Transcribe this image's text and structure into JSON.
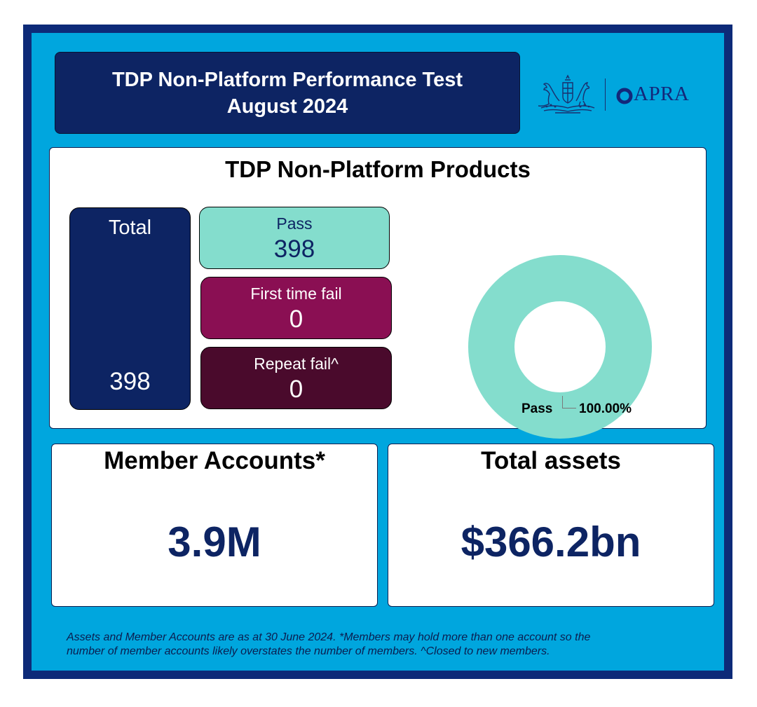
{
  "header": {
    "title_line1": "TDP Non-Platform Performance Test",
    "title_line2": "August 2024",
    "logo_text": "APRA",
    "crest_icon": "australian-coat-of-arms-icon"
  },
  "products": {
    "title": "TDP Non-Platform Products",
    "total_label": "Total",
    "total_value": "398",
    "pass_label": "Pass",
    "pass_value": "398",
    "first_fail_label": "First time fail",
    "first_fail_value": "0",
    "repeat_fail_label": "Repeat fail^",
    "repeat_fail_value": "0"
  },
  "chart_data": {
    "type": "pie",
    "categories": [
      "Pass"
    ],
    "values": [
      100.0
    ],
    "labels": [
      {
        "category": "Pass",
        "percent": "100.00%"
      }
    ],
    "colors": [
      "#84ddcd"
    ],
    "donut": true
  },
  "metrics": {
    "members_title": "Member Accounts*",
    "members_value": "3.9M",
    "assets_title": "Total assets",
    "assets_value": "$366.2bn"
  },
  "footnote": {
    "line1": "Assets and Member Accounts are as at 30 June 2024. *Members may hold more than one account so the",
    "line2": "number of member accounts likely overstates the number of members. ^Closed to new members."
  },
  "colors": {
    "navy": "#0d2463",
    "frame": "#0d2a78",
    "background": "#00a6de",
    "pass": "#84ddcd",
    "first_fail": "#8a0f53",
    "repeat_fail": "#4a0a2c"
  }
}
